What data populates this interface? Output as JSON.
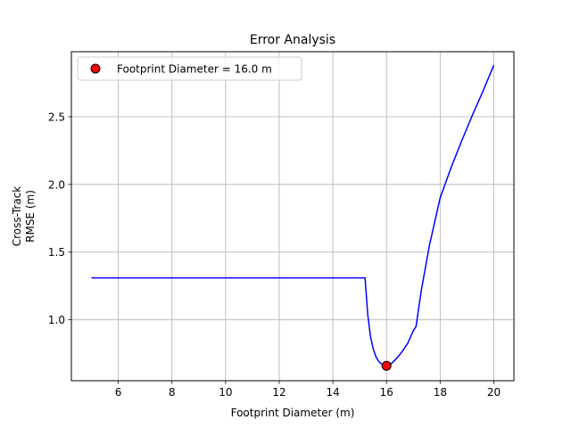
{
  "chart_data": {
    "type": "line",
    "title": "Error Analysis",
    "xlabel": "Footprint Diameter (m)",
    "ylabel_lines": [
      "Cross-Track",
      "RMSE (m)"
    ],
    "xlim": [
      4.25,
      20.75
    ],
    "ylim": [
      0.55,
      2.98
    ],
    "xticks": [
      6,
      8,
      10,
      12,
      14,
      16,
      18,
      20
    ],
    "yticks": [
      1.0,
      1.5,
      2.0,
      2.5
    ],
    "grid": true,
    "legend_position": "top-left",
    "series": [
      {
        "color": "#0000ff",
        "x": [
          5.0,
          6.0,
          8.0,
          10.0,
          12.0,
          14.0,
          15.0,
          15.2,
          15.3,
          15.4,
          15.5,
          15.6,
          15.7,
          15.8,
          15.9,
          16.0,
          16.1,
          16.2,
          16.4,
          16.6,
          16.8,
          17.0,
          17.1,
          17.3,
          17.6,
          18.0,
          18.4,
          18.8,
          19.2,
          19.6,
          20.0
        ],
        "y": [
          1.31,
          1.31,
          1.31,
          1.31,
          1.31,
          1.31,
          1.31,
          1.31,
          1.04,
          0.88,
          0.79,
          0.73,
          0.695,
          0.675,
          0.665,
          0.66,
          0.665,
          0.68,
          0.72,
          0.77,
          0.83,
          0.92,
          0.95,
          1.22,
          1.55,
          1.9,
          2.12,
          2.32,
          2.51,
          2.69,
          2.88
        ]
      }
    ],
    "marker": {
      "x": 16.0,
      "y": 0.66,
      "label": "Footprint Diameter = 16.0 m",
      "color": "#ff0000"
    }
  }
}
